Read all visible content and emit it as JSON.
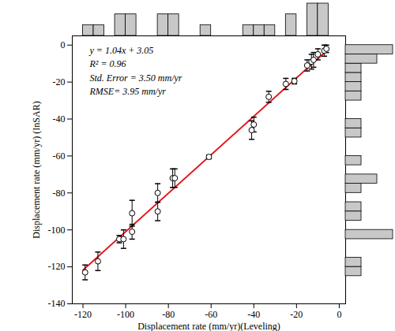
{
  "chart_data": {
    "type": "scatter",
    "x_label": "Displacement rate (mm/yr)(Leveling)",
    "y_label": "Displacement rate (mm/yr) (InSAR)",
    "annotations": [
      "y = 1.04x + 3.05",
      "R² = 0.96",
      "Std. Error = 3.50 mm/yr",
      "RMSE= 3.95 mm/yr"
    ],
    "xlim": [
      -125,
      3
    ],
    "ylim": [
      -140,
      5
    ],
    "xticks": [
      -120,
      -100,
      -80,
      -60,
      -40,
      -20,
      0
    ],
    "yticks": [
      0,
      -20,
      -40,
      -60,
      -80,
      -100,
      -120,
      -140
    ],
    "grid": false,
    "marker": "circle",
    "color": "#000000",
    "x": [
      -119,
      -113,
      -103,
      -101,
      -97,
      -97,
      -85,
      -85,
      -78,
      -77,
      -61,
      -41,
      -40,
      -33,
      -25,
      -21,
      -15,
      -13,
      -12,
      -10,
      -7,
      -6
    ],
    "values": [
      -123,
      -117,
      -105,
      -105,
      -101,
      -91,
      -90,
      -80,
      -72,
      -72,
      -60.5,
      -46,
      -43,
      -28,
      -21,
      -19.5,
      -11,
      -9,
      -8,
      -5,
      -3,
      -2
    ],
    "errors": [
      4,
      5,
      2,
      5,
      4,
      7,
      5,
      5,
      5,
      5,
      1,
      5,
      4,
      3,
      3,
      1.5,
      3,
      4,
      4,
      3,
      3,
      2
    ],
    "fit_line": {
      "type": "line",
      "color": "#e8141c",
      "line_style": "solid",
      "x": [
        -120,
        -5
      ],
      "values": [
        -121.75,
        -2.15
      ]
    },
    "x_hist": {
      "color": "#c8c8c8",
      "bins": [
        -120,
        -115,
        -110,
        -105,
        -100,
        -95,
        -90,
        -85,
        -80,
        -75,
        -70,
        -65,
        -60,
        -55,
        -50,
        -45,
        -40,
        -35,
        -30,
        -25,
        -20,
        -15,
        -10,
        -5,
        0
      ],
      "counts": [
        1,
        1,
        0,
        2,
        2,
        0,
        0,
        2,
        2,
        0,
        0,
        1,
        0,
        0,
        0,
        1,
        1,
        1,
        0,
        2,
        0,
        3,
        3,
        0
      ]
    },
    "y_hist": {
      "color": "#c8c8c8",
      "bins": [
        -125,
        -120,
        -115,
        -110,
        -105,
        -100,
        -95,
        -90,
        -85,
        -80,
        -75,
        -70,
        -65,
        -60,
        -55,
        -50,
        -45,
        -40,
        -35,
        -30,
        -25,
        -20,
        -15,
        -10,
        -5,
        0
      ],
      "counts": [
        1,
        1,
        0,
        0,
        3,
        0,
        1,
        1,
        0,
        1,
        2,
        0,
        1,
        0,
        0,
        1,
        1,
        0,
        0,
        1,
        1,
        1,
        1,
        2,
        3
      ]
    },
    "tick_labels": true
  }
}
